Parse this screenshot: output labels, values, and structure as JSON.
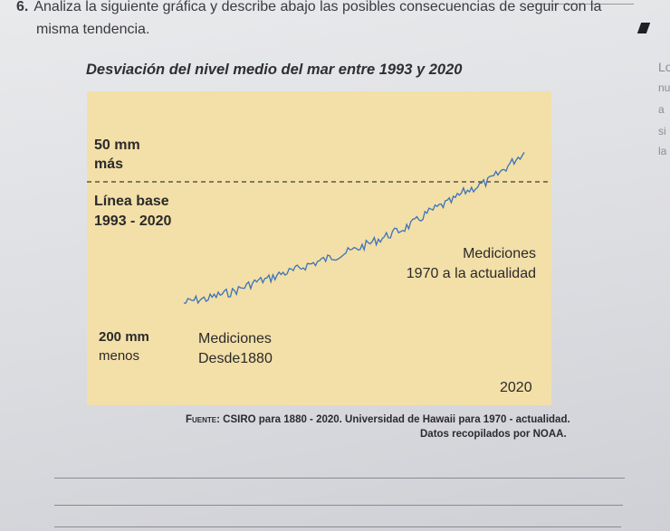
{
  "question": {
    "number": "6.",
    "text_line1": "Analiza la siguiente gráfica y describe abajo las posibles consecuencias de seguir con la",
    "text_line2": "misma tendencia."
  },
  "chart_data": {
    "type": "line",
    "title": "Desviación del nivel medio del mar entre 1993 y 2020",
    "ylim": [
      -200,
      50
    ],
    "annotations": {
      "top": "50 mm más",
      "top_line1": "50 mm",
      "top_line2": "más",
      "baseline_line1": "Línea base",
      "baseline_line2": "1993 - 2020",
      "bottom_line1": "200 mm",
      "bottom_line2": "menos",
      "measurement_old_line1": "Mediciones",
      "measurement_old_line2": "Desde1880",
      "measurement_new_line1": "Mediciones",
      "measurement_new_line2": "1970 a la actualidad",
      "end_year": "2020"
    },
    "series": [
      {
        "x": [
          1880,
          1885,
          1890,
          1895,
          1900,
          1905,
          1910,
          1915,
          1920,
          1925,
          1930,
          1935,
          1940,
          1945,
          1950,
          1955,
          1960,
          1965,
          1970,
          1975,
          1980,
          1985,
          1990,
          1995,
          2000,
          2005,
          2010,
          2015,
          2020
        ],
        "values": [
          -185,
          -180,
          -178,
          -172,
          -168,
          -160,
          -152,
          -148,
          -140,
          -136,
          -128,
          -122,
          -116,
          -110,
          -104,
          -96,
          -88,
          -80,
          -72,
          -62,
          -48,
          -38,
          -30,
          -16,
          -8,
          0,
          14,
          30,
          45
        ]
      }
    ]
  },
  "source": {
    "prefix": "Fuente:",
    "text": "CSIRO para 1880 - 2020. Universidad de Hawaii para 1970 - actualidad.",
    "text2": "Datos recopilados por NOAA."
  },
  "side_text": [
    "Lo",
    "nu",
    "a",
    "si",
    "la"
  ],
  "colors": {
    "chart_bg": "#f3dfa8",
    "line": "#3a73b8",
    "baseline": "#3a3a3a"
  }
}
